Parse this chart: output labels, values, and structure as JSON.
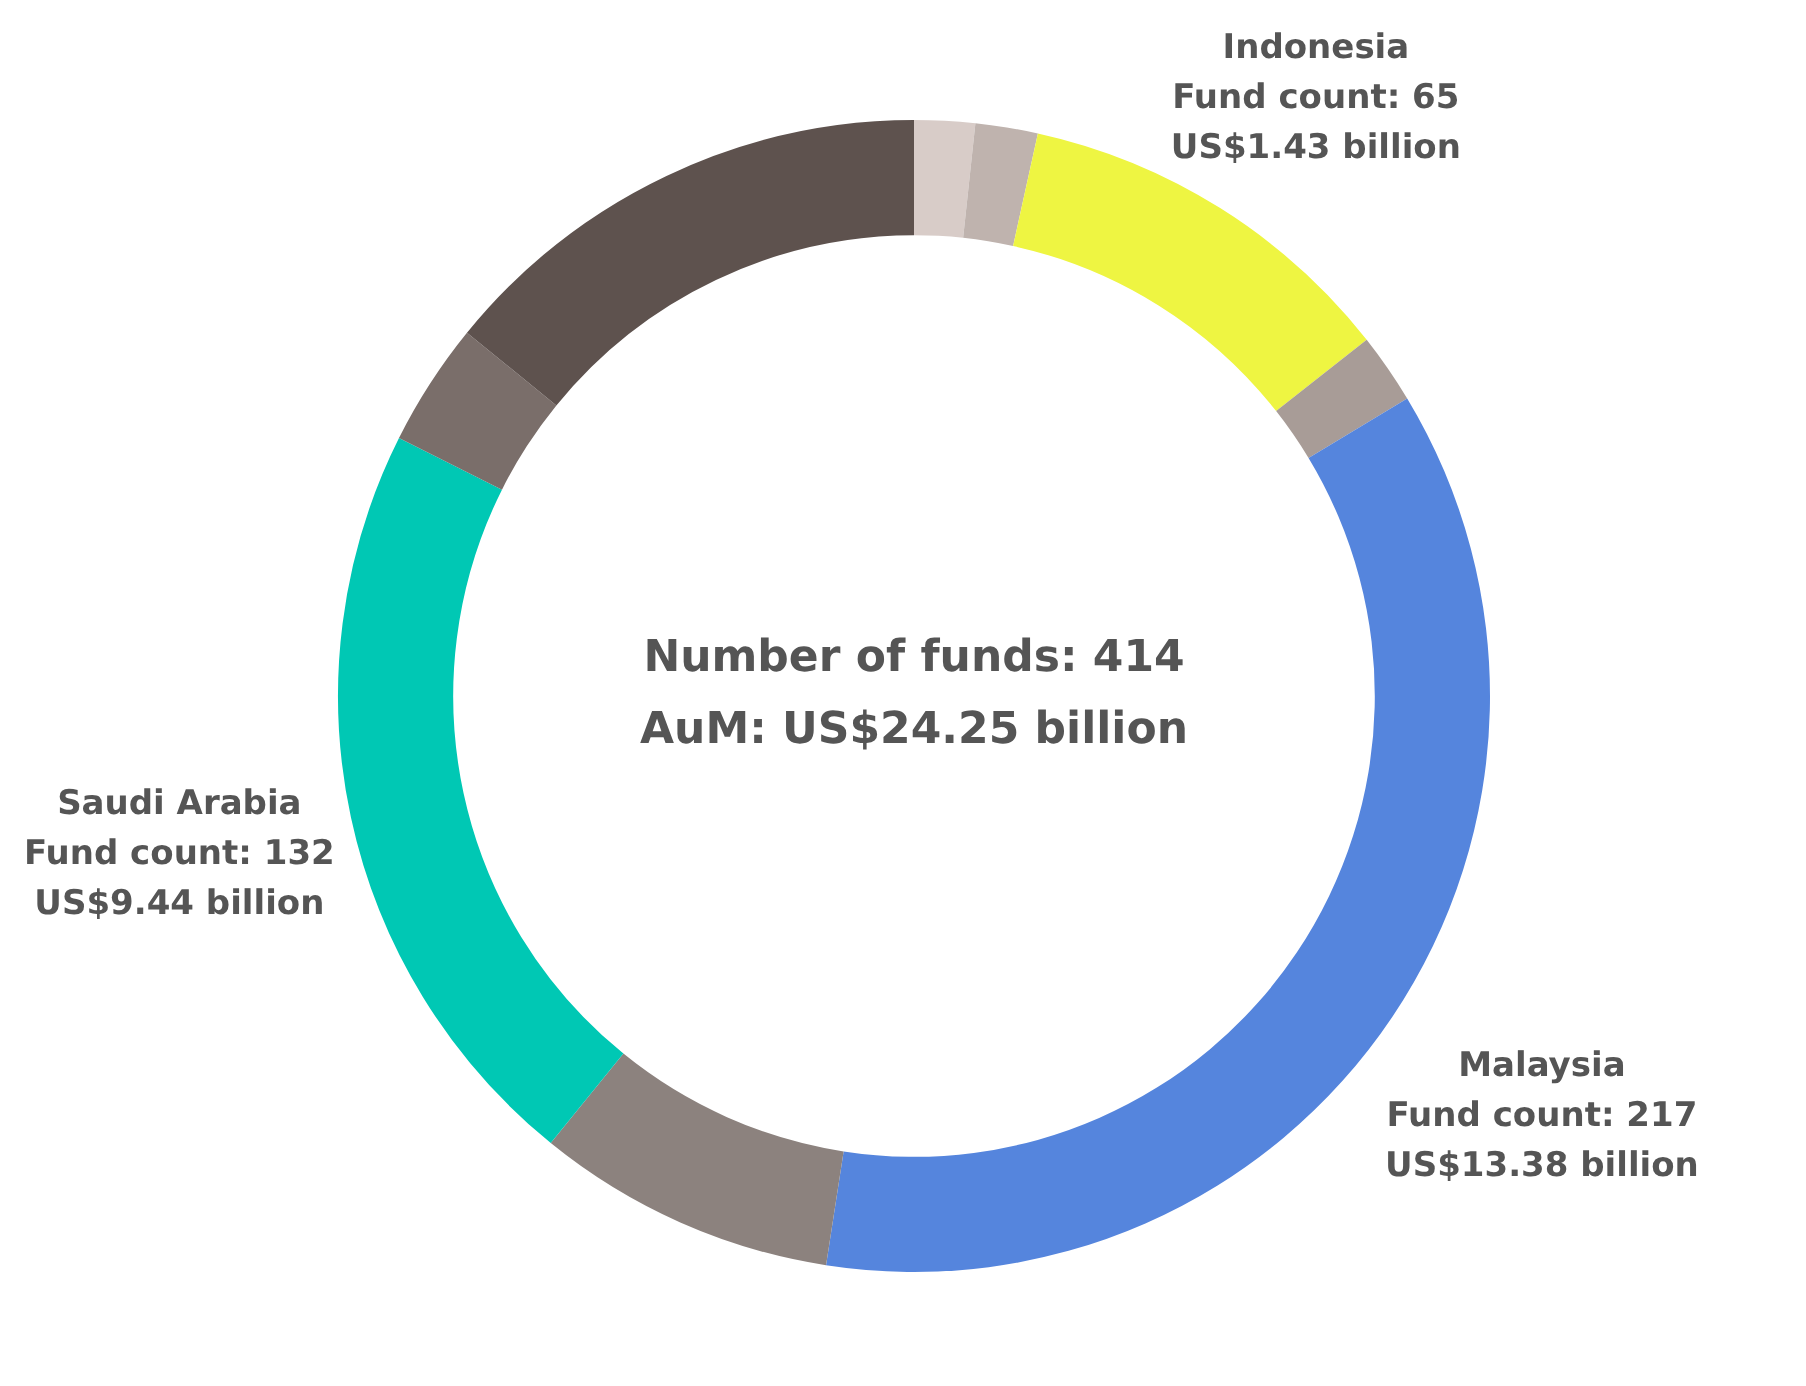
{
  "chart_data": {
    "type": "donut",
    "categories": [
      null,
      null,
      "Indonesia",
      null,
      "Malaysia",
      null,
      "Saudi Arabia",
      null,
      null
    ],
    "values": [
      1.7,
      1.75,
      10.94,
      1.97,
      36.08,
      8.42,
      21.53,
      3.47,
      14.14
    ],
    "colors": [
      "#d8ccc8",
      "#bfb3ae",
      "#eef542",
      "#a89c97",
      "#5585dd",
      "#8c827e",
      "#00c8b4",
      "#7a6e6a",
      "#5e524e"
    ],
    "value_labels": [
      null,
      null,
      "Fund count: 65\nUS$1.43 billion",
      null,
      "Fund count: 217\nUS$13.38 billion",
      null,
      "Fund count: 132\nUS$9.44 billion",
      null,
      null
    ],
    "annotations": [
      "Number of funds: 414",
      "AuM: US$24.25 billion"
    ],
    "legend": false
  }
}
